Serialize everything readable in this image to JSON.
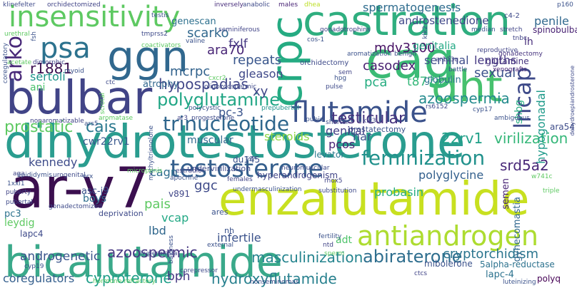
{
  "words": [
    {
      "text": "dihydrotestosterone",
      "color": "#2a9d8f"
    },
    {
      "text": "bicalutamide",
      "color": "#3aa98a"
    },
    {
      "text": "enzalutamide",
      "color": "#c8e020"
    },
    {
      "text": "ar-v7",
      "color": "#3b0f4f"
    },
    {
      "text": "castration",
      "color": "#2fae7f"
    },
    {
      "text": "cag",
      "color": "#3bbb75"
    },
    {
      "text": "dht",
      "color": "#47c16e"
    },
    {
      "text": "ggn",
      "color": "#31688e"
    },
    {
      "text": "bulbar",
      "color": "#414487"
    },
    {
      "text": "crpc",
      "color": "#25ab82"
    },
    {
      "text": "insensitivity",
      "color": "#5ec962"
    },
    {
      "text": "psa",
      "color": "#2c728e"
    },
    {
      "text": "flutamide",
      "color": "#3b528b"
    },
    {
      "text": "antiandrogen",
      "color": "#addc30"
    },
    {
      "text": "testosterone",
      "color": "#355f8d"
    },
    {
      "text": "trinucleotide",
      "color": "#30678d"
    },
    {
      "text": "feminization",
      "color": "#21918c"
    },
    {
      "text": "lncap",
      "color": "#3e4a89"
    },
    {
      "text": "arko",
      "color": "#482878"
    },
    {
      "text": "abiraterone",
      "color": "#2e6e8e"
    },
    {
      "text": "polyglutamine",
      "color": "#21a685"
    },
    {
      "text": "hypospadias",
      "color": "#404688"
    },
    {
      "text": "cyproterone",
      "color": "#1f9e89"
    },
    {
      "text": "hydroxyflutamide",
      "color": "#27808e"
    },
    {
      "text": "masculinization",
      "color": "#25848e"
    },
    {
      "text": "cryptorchidism",
      "color": "#2b758e"
    },
    {
      "text": "androgenetic",
      "color": "#3a548c"
    },
    {
      "text": "azoospermic",
      "color": "#453581"
    },
    {
      "text": "virilization",
      "color": "#35b779"
    },
    {
      "text": "22rv1",
      "color": "#1fa088"
    },
    {
      "text": "testicular",
      "color": "#46337e"
    },
    {
      "text": "azoospermia",
      "color": "#238a8d"
    },
    {
      "text": "spermatogenesis",
      "color": "#2f6c8e"
    },
    {
      "text": "androstenedione",
      "color": "#3f4788"
    },
    {
      "text": "mdv3100",
      "color": "#471164"
    },
    {
      "text": "genitalia",
      "color": "#22a884"
    },
    {
      "text": "seminal",
      "color": "#3e4c8a"
    },
    {
      "text": "lengths",
      "color": "#453882"
    },
    {
      "text": "sexual",
      "color": "#3b528b"
    },
    {
      "text": "casodex",
      "color": "#482071"
    },
    {
      "text": "gleason",
      "color": "#3f4889"
    },
    {
      "text": "repeats",
      "color": "#39568c"
    },
    {
      "text": "ara70",
      "color": "#482576"
    },
    {
      "text": "fxlf",
      "color": "#453882"
    },
    {
      "text": "mcrpc",
      "color": "#33638d"
    },
    {
      "text": "scarko",
      "color": "#31688e"
    },
    {
      "text": "genescan",
      "color": "#2d708e"
    },
    {
      "text": "r1881",
      "color": "#3b0f4f"
    },
    {
      "text": "sertoli",
      "color": "#1f958b"
    },
    {
      "text": "ani",
      "color": "#4ac16d"
    },
    {
      "text": "prostatic",
      "color": "#5ec962"
    },
    {
      "text": "cais",
      "color": "#2a788e"
    },
    {
      "text": "atrophy",
      "color": "#31688e"
    },
    {
      "text": "xy",
      "color": "#3f4788"
    },
    {
      "text": "pc-3",
      "color": "#3a548c"
    },
    {
      "text": "pca",
      "color": "#26ad81"
    },
    {
      "text": "t877a",
      "color": "#35b779"
    },
    {
      "text": "genital",
      "color": "#433e85"
    },
    {
      "text": "har",
      "color": "#3b528b"
    },
    {
      "text": "pcos",
      "color": "#482475"
    },
    {
      "text": "steroids",
      "color": "#8fd744"
    },
    {
      "text": "muscular",
      "color": "#31688e"
    },
    {
      "text": "cwr22rv1",
      "color": "#38588c"
    },
    {
      "text": "kennedy",
      "color": "#3e4c8a"
    },
    {
      "text": "cagn",
      "color": "#2e6e8e"
    },
    {
      "text": "ggc",
      "color": "#3e4a89"
    },
    {
      "text": "probasin",
      "color": "#27ad81"
    },
    {
      "text": "polyglycine",
      "color": "#34608d"
    },
    {
      "text": "srd5a2",
      "color": "#482878"
    },
    {
      "text": "boys",
      "color": "#2e6e8e"
    },
    {
      "text": "pais",
      "color": "#5ec962"
    },
    {
      "text": "vcap",
      "color": "#22a884"
    },
    {
      "text": "lbd",
      "color": "#31688e"
    },
    {
      "text": "infertile",
      "color": "#3b528b"
    },
    {
      "text": "adt",
      "color": "#4ec36b"
    },
    {
      "text": "bph",
      "color": "#453882"
    },
    {
      "text": "coregulators",
      "color": "#355f8d"
    },
    {
      "text": "mibolerone",
      "color": "#3b528b"
    },
    {
      "text": "5alpha-reductase",
      "color": "#2c728e"
    },
    {
      "text": "lapc-4",
      "color": "#2c728e"
    },
    {
      "text": "polyq",
      "color": "#440154"
    },
    {
      "text": "hyperandrogenism",
      "color": "#414487"
    },
    {
      "text": "levator",
      "color": "#2a788e"
    },
    {
      "text": "asc-j9",
      "color": "#3b528b"
    },
    {
      "text": "pc3",
      "color": "#2c728e"
    },
    {
      "text": "leydig",
      "color": "#5ec962"
    },
    {
      "text": "lapc4",
      "color": "#3e4a89"
    },
    {
      "text": "shbg",
      "color": "#27ad81"
    },
    {
      "text": "hypogonadal",
      "color": "#1f9a8a"
    },
    {
      "text": "gynecomastia",
      "color": "#31688e"
    },
    {
      "text": "ara54",
      "color": "#3e4c8a"
    },
    {
      "text": "penile",
      "color": "#31688e"
    },
    {
      "text": "lh",
      "color": "#472d7b"
    },
    {
      "text": "glutamine",
      "color": "#46337e"
    },
    {
      "text": "spinobulbar",
      "color": "#482173"
    },
    {
      "text": "semen",
      "color": "#482475"
    },
    {
      "text": "v891",
      "color": "#404688"
    },
    {
      "text": "du145",
      "color": "#3b528b"
    },
    {
      "text": "undervirilization",
      "color": "#3e4a89"
    },
    {
      "text": "ares",
      "color": "#3b528b"
    },
    {
      "text": "nh",
      "color": "#3b528b"
    },
    {
      "text": "deprivation",
      "color": "#3e4a89"
    },
    {
      "text": "prostatectomy",
      "color": "#3b528b"
    },
    {
      "text": "globulin",
      "color": "#2c728e"
    },
    {
      "text": "klinefelter",
      "color": "#3e4a89"
    },
    {
      "text": "orchidectomized",
      "color": "#414487"
    },
    {
      "text": "inversely",
      "color": "#472d7b"
    },
    {
      "text": "anabolic",
      "color": "#3e4a89"
    },
    {
      "text": "males",
      "color": "#482475"
    },
    {
      "text": "dhea",
      "color": "#bddf26"
    },
    {
      "text": "p160",
      "color": "#3b528b"
    },
    {
      "text": "c4-2",
      "color": "#3e4a89"
    },
    {
      "text": "median",
      "color": "#39568c"
    },
    {
      "text": "stretch",
      "color": "#414487"
    },
    {
      "text": "tnbc",
      "color": "#414487"
    },
    {
      "text": "gonadectomy",
      "color": "#46337e"
    },
    {
      "text": "xenografts",
      "color": "#482475"
    },
    {
      "text": "battle",
      "color": "#3b528b"
    },
    {
      "text": "reproductive",
      "color": "#414487"
    },
    {
      "text": "cyp17",
      "color": "#3b528b"
    },
    {
      "text": "dehydroepiandrosterone",
      "color": "#3e4a89"
    },
    {
      "text": "ambiguous",
      "color": "#3b528b"
    },
    {
      "text": "klk3",
      "color": "#414487"
    },
    {
      "text": "rs6152",
      "color": "#3e4a89"
    },
    {
      "text": "ar113q",
      "color": "#414487"
    },
    {
      "text": "orchidectomy",
      "color": "#3e4a89"
    },
    {
      "text": "gonadotrophins",
      "color": "#414487"
    },
    {
      "text": "aromatization",
      "color": "#3b528b"
    },
    {
      "text": "sem",
      "color": "#414487"
    },
    {
      "text": "klk2",
      "color": "#3b528b"
    },
    {
      "text": "tmprss2",
      "color": "#3e4a89"
    },
    {
      "text": "seminiferous",
      "color": "#414487"
    },
    {
      "text": "valine",
      "color": "#3b528b"
    },
    {
      "text": "coactivators",
      "color": "#5ec962"
    },
    {
      "text": "myoid",
      "color": "#3b528b"
    },
    {
      "text": "dimorphic",
      "color": "#414487"
    },
    {
      "text": "coregulatory",
      "color": "#3b528b"
    },
    {
      "text": "acetate",
      "color": "#5ec962"
    },
    {
      "text": "ctc",
      "color": "#3e4a89"
    },
    {
      "text": "cxcr2",
      "color": "#5ec962"
    },
    {
      "text": "oligozoospermic",
      "color": "#3e4a89"
    },
    {
      "text": "polycystic",
      "color": "#3b528b"
    },
    {
      "text": "prepubertal",
      "color": "#21918c"
    },
    {
      "text": "ar3",
      "color": "#414487"
    },
    {
      "text": "progesterone",
      "color": "#3e4a89"
    },
    {
      "text": "pubic",
      "color": "#3b528b"
    },
    {
      "text": "shorter",
      "color": "#3e4a89"
    },
    {
      "text": "nonaromatizable",
      "color": "#414487"
    },
    {
      "text": "ars5",
      "color": "#3b528b"
    },
    {
      "text": "aromatase",
      "color": "#5ec962"
    },
    {
      "text": "methyltrienolone",
      "color": "#3b528b"
    },
    {
      "text": "estradiol",
      "color": "#414487"
    },
    {
      "text": "neuromuscular",
      "color": "#3e4a89"
    },
    {
      "text": "sex",
      "color": "#3b528b"
    },
    {
      "text": "rhox5",
      "color": "#414487"
    },
    {
      "text": "w741c",
      "color": "#5ec962"
    },
    {
      "text": "triple",
      "color": "#5ec962"
    },
    {
      "text": "aga",
      "color": "#414487"
    },
    {
      "text": "epididymis",
      "color": "#3b528b"
    },
    {
      "text": "urogenital",
      "color": "#3e4a89"
    },
    {
      "text": "1xxl1",
      "color": "#3b528b"
    },
    {
      "text": "puberty",
      "color": "#414487"
    },
    {
      "text": "pubertal",
      "color": "#3e4a89"
    },
    {
      "text": "orx",
      "color": "#3b528b"
    },
    {
      "text": "micropenis",
      "color": "#5ec962"
    },
    {
      "text": "apocrine",
      "color": "#3b528b"
    },
    {
      "text": "females",
      "color": "#414487"
    },
    {
      "text": "substitution",
      "color": "#3e4a89"
    },
    {
      "text": "undermasculinization",
      "color": "#3b528b"
    },
    {
      "text": "gonadectomized",
      "color": "#3e4a89"
    },
    {
      "text": "fertility",
      "color": "#3b528b"
    },
    {
      "text": "ntd",
      "color": "#414487"
    },
    {
      "text": "sperm",
      "color": "#5ec962"
    },
    {
      "text": "hyperplasia",
      "color": "#3e4a89"
    },
    {
      "text": "baldness",
      "color": "#3b528b"
    },
    {
      "text": "corepressor",
      "color": "#3e4a89"
    },
    {
      "text": "hormone-refractory",
      "color": "#5ec962"
    },
    {
      "text": "cyp19",
      "color": "#3b528b"
    },
    {
      "text": "ctcs",
      "color": "#414487"
    },
    {
      "text": "luteinizing",
      "color": "#3b528b"
    },
    {
      "text": "nonseminomas",
      "color": "#3e4a89"
    },
    {
      "text": "testis",
      "color": "#3b528b"
    },
    {
      "text": "urethral",
      "color": "#5ec962"
    },
    {
      "text": "fsh",
      "color": "#3b528b"
    },
    {
      "text": "benign",
      "color": "#3e4a89"
    },
    {
      "text": "cos-1",
      "color": "#3b528b"
    },
    {
      "text": "scrotal",
      "color": "#5ec962"
    },
    {
      "text": "hpg",
      "color": "#3b528b"
    },
    {
      "text": "pulse",
      "color": "#3e4a89"
    },
    {
      "text": "external",
      "color": "#3b528b"
    }
  ]
}
